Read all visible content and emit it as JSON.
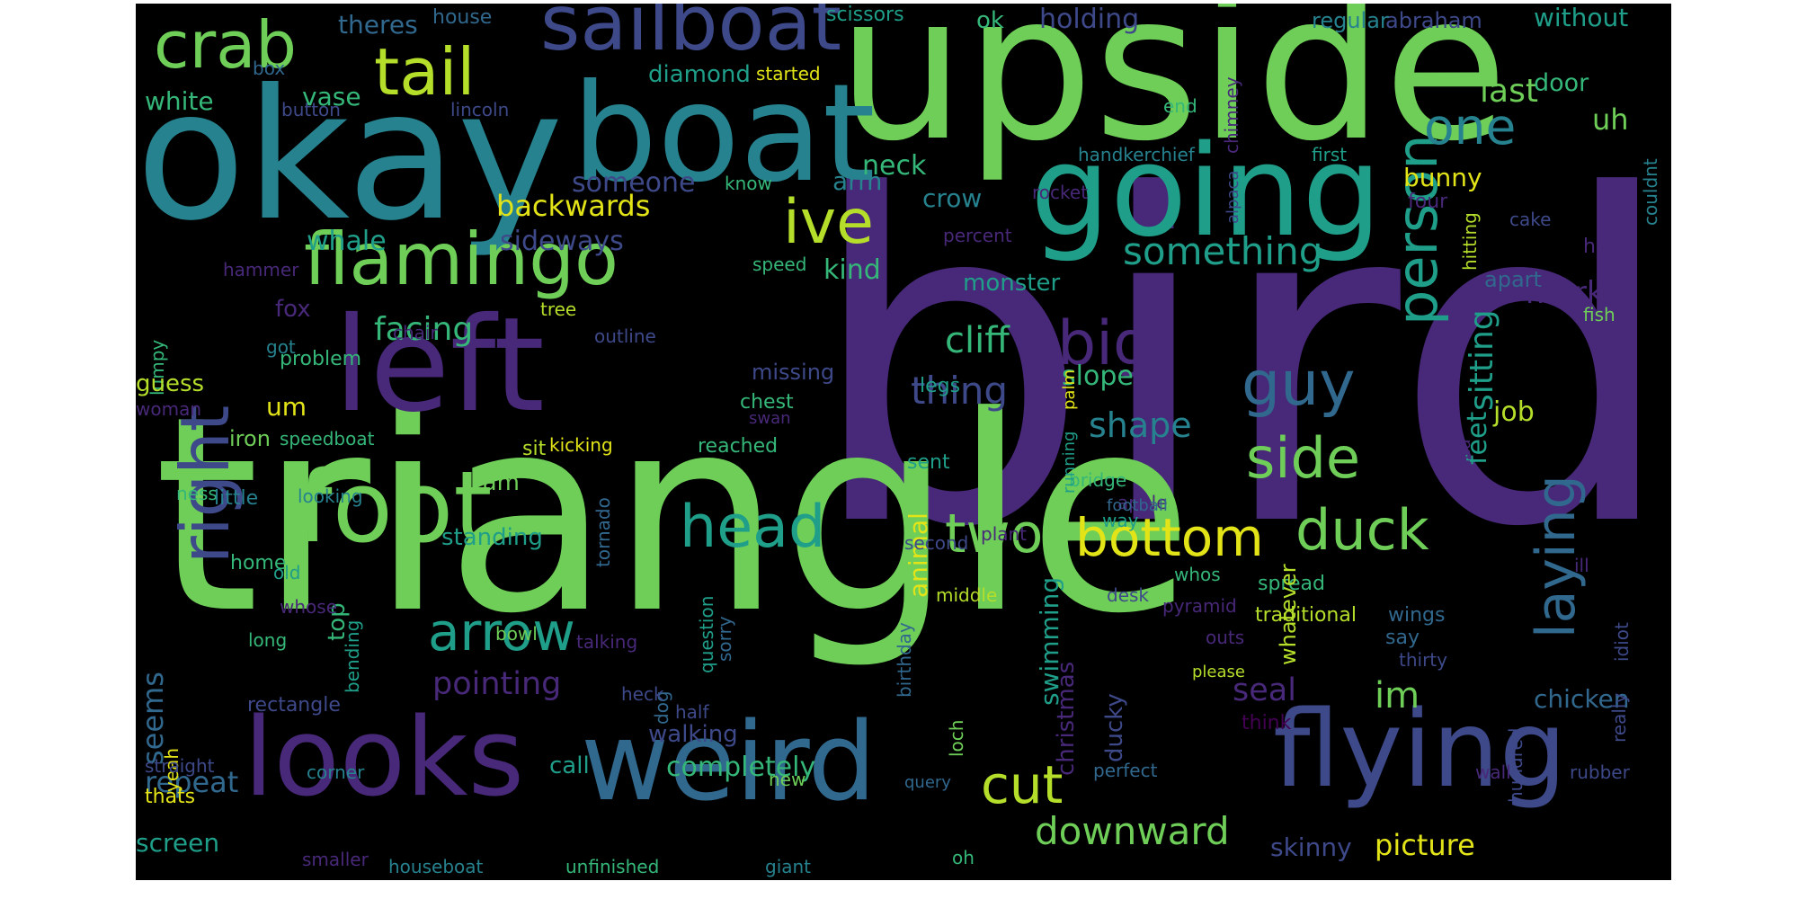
{
  "palette": {
    "purple": "#482878",
    "indigo": "#3e4989",
    "blue": "#31688e",
    "teal": "#26828e",
    "aqua": "#1f9e89",
    "green": "#35b779",
    "lime": "#6ece58",
    "yellowgreen": "#b5de2b",
    "yellow": "#e3e418",
    "darkpurple": "#440154"
  },
  "words": [
    {
      "text": "bird",
      "color": "purple"
    },
    {
      "text": "triangle",
      "color": "lime"
    },
    {
      "text": "upside",
      "color": "lime"
    },
    {
      "text": "okay",
      "color": "teal"
    },
    {
      "text": "boat",
      "color": "teal"
    },
    {
      "text": "going",
      "color": "aqua"
    },
    {
      "text": "left",
      "color": "purple"
    },
    {
      "text": "looks",
      "color": "purple"
    },
    {
      "text": "weird",
      "color": "blue"
    },
    {
      "text": "flying",
      "color": "indigo"
    },
    {
      "text": "foot",
      "color": "lime"
    },
    {
      "text": "sailboat",
      "color": "indigo"
    },
    {
      "text": "flamingo",
      "color": "lime"
    },
    {
      "text": "right",
      "color": "indigo"
    },
    {
      "text": "crab",
      "color": "lime"
    },
    {
      "text": "tail",
      "color": "yellowgreen"
    },
    {
      "text": "person",
      "color": "aqua"
    },
    {
      "text": "ive",
      "color": "yellowgreen"
    },
    {
      "text": "big",
      "color": "purple"
    },
    {
      "text": "guy",
      "color": "blue"
    },
    {
      "text": "side",
      "color": "lime"
    },
    {
      "text": "head",
      "color": "aqua"
    },
    {
      "text": "two",
      "color": "lime"
    },
    {
      "text": "bottom",
      "color": "yellow"
    },
    {
      "text": "duck",
      "color": "lime"
    },
    {
      "text": "arrow",
      "color": "aqua"
    },
    {
      "text": "laying",
      "color": "blue"
    },
    {
      "text": "cut",
      "color": "yellowgreen"
    },
    {
      "text": "downward",
      "color": "lime"
    },
    {
      "text": "one",
      "color": "teal"
    },
    {
      "text": "something",
      "color": "aqua"
    },
    {
      "text": "thing",
      "color": "indigo"
    },
    {
      "text": "cliff",
      "color": "green"
    },
    {
      "text": "shape",
      "color": "teal"
    },
    {
      "text": "facing",
      "color": "green"
    },
    {
      "text": "backwards",
      "color": "yellow"
    },
    {
      "text": "pointing",
      "color": "purple"
    },
    {
      "text": "seal",
      "color": "purple"
    },
    {
      "text": "im",
      "color": "lime"
    },
    {
      "text": "repeat",
      "color": "blue"
    },
    {
      "text": "picture",
      "color": "yellow"
    },
    {
      "text": "skinny",
      "color": "indigo"
    },
    {
      "text": "feet",
      "color": "aqua"
    },
    {
      "text": "swimming",
      "color": "aqua"
    },
    {
      "text": "christmas",
      "color": "purple"
    },
    {
      "text": "animal",
      "color": "yellow"
    },
    {
      "text": "chicken",
      "color": "blue"
    },
    {
      "text": "last",
      "color": "lime"
    },
    {
      "text": "uh",
      "color": "lime"
    },
    {
      "text": "door",
      "color": "green"
    },
    {
      "text": "without",
      "color": "aqua"
    },
    {
      "text": "abraham",
      "color": "indigo"
    },
    {
      "text": "regular",
      "color": "teal"
    },
    {
      "text": "holding",
      "color": "indigo"
    },
    {
      "text": "ok",
      "color": "green"
    },
    {
      "text": "scissors",
      "color": "aqua"
    },
    {
      "text": "house",
      "color": "blue"
    },
    {
      "text": "theres",
      "color": "blue"
    },
    {
      "text": "white",
      "color": "green"
    },
    {
      "text": "vase",
      "color": "green"
    },
    {
      "text": "diamond",
      "color": "aqua"
    },
    {
      "text": "started",
      "color": "yellow"
    },
    {
      "text": "box",
      "color": "blue"
    },
    {
      "text": "button",
      "color": "indigo"
    },
    {
      "text": "lincoln",
      "color": "indigo"
    },
    {
      "text": "end",
      "color": "green"
    },
    {
      "text": "chimney",
      "color": "purple"
    },
    {
      "text": "first",
      "color": "aqua"
    },
    {
      "text": "handkerchief",
      "color": "teal"
    },
    {
      "text": "alpaca",
      "color": "indigo"
    },
    {
      "text": "couldnt",
      "color": "teal"
    },
    {
      "text": "neck",
      "color": "green"
    },
    {
      "text": "arm",
      "color": "teal"
    },
    {
      "text": "someone",
      "color": "indigo"
    },
    {
      "text": "know",
      "color": "green"
    },
    {
      "text": "rocket",
      "color": "purple"
    },
    {
      "text": "bunny",
      "color": "yellow"
    },
    {
      "text": "four",
      "color": "purple"
    },
    {
      "text": "cake",
      "color": "indigo"
    },
    {
      "text": "hitting",
      "color": "yellowgreen"
    },
    {
      "text": "crow",
      "color": "teal"
    },
    {
      "text": "percent",
      "color": "purple"
    },
    {
      "text": "hear",
      "color": "purple"
    },
    {
      "text": "whale",
      "color": "aqua"
    },
    {
      "text": "sideways",
      "color": "indigo"
    },
    {
      "text": "kind",
      "color": "green"
    },
    {
      "text": "speed",
      "color": "green"
    },
    {
      "text": "hammer",
      "color": "purple"
    },
    {
      "text": "monster",
      "color": "aqua"
    },
    {
      "text": "apart",
      "color": "blue"
    },
    {
      "text": "dont",
      "color": "purple"
    },
    {
      "text": "fox",
      "color": "purple"
    },
    {
      "text": "chair",
      "color": "purple"
    },
    {
      "text": "got",
      "color": "teal"
    },
    {
      "text": "tree",
      "color": "yellowgreen"
    },
    {
      "text": "mark",
      "color": "purple"
    },
    {
      "text": "fish",
      "color": "lime"
    },
    {
      "text": "lumpy",
      "color": "green"
    },
    {
      "text": "outline",
      "color": "indigo"
    },
    {
      "text": "problem",
      "color": "green"
    },
    {
      "text": "guess",
      "color": "yellowgreen"
    },
    {
      "text": "woman",
      "color": "purple"
    },
    {
      "text": "um",
      "color": "yellow"
    },
    {
      "text": "missing",
      "color": "indigo"
    },
    {
      "text": "legs",
      "color": "aqua"
    },
    {
      "text": "slope",
      "color": "green"
    },
    {
      "text": "chest",
      "color": "green"
    },
    {
      "text": "swan",
      "color": "purple"
    },
    {
      "text": "palm",
      "color": "yellow"
    },
    {
      "text": "job",
      "color": "yellowgreen"
    },
    {
      "text": "go",
      "color": "purple"
    },
    {
      "text": "sitting",
      "color": "aqua"
    },
    {
      "text": "idea",
      "color": "purple"
    },
    {
      "text": "speedboat",
      "color": "green"
    },
    {
      "text": "kicking",
      "color": "yellow"
    },
    {
      "text": "reached",
      "color": "green"
    },
    {
      "text": "sent",
      "color": "aqua"
    },
    {
      "text": "bridge",
      "color": "green"
    },
    {
      "text": "apple",
      "color": "purple"
    },
    {
      "text": "iron",
      "color": "lime"
    },
    {
      "text": "sit",
      "color": "yellowgreen"
    },
    {
      "text": "ram",
      "color": "lime"
    },
    {
      "text": "ness",
      "color": "green"
    },
    {
      "text": "little",
      "color": "teal"
    },
    {
      "text": "looking",
      "color": "teal"
    },
    {
      "text": "running",
      "color": "aqua"
    },
    {
      "text": "football",
      "color": "blue"
    },
    {
      "text": "way",
      "color": "aqua"
    },
    {
      "text": "plant",
      "color": "purple"
    },
    {
      "text": "standing",
      "color": "aqua"
    },
    {
      "text": "tornado",
      "color": "blue"
    },
    {
      "text": "second",
      "color": "indigo"
    },
    {
      "text": "whos",
      "color": "green"
    },
    {
      "text": "ill",
      "color": "purple"
    },
    {
      "text": "home",
      "color": "green"
    },
    {
      "text": "old",
      "color": "aqua"
    },
    {
      "text": "middle",
      "color": "yellowgreen"
    },
    {
      "text": "desk",
      "color": "indigo"
    },
    {
      "text": "pyramid",
      "color": "purple"
    },
    {
      "text": "outs",
      "color": "purple"
    },
    {
      "text": "say",
      "color": "blue"
    },
    {
      "text": "spread",
      "color": "green"
    },
    {
      "text": "traditional",
      "color": "yellowgreen"
    },
    {
      "text": "bending",
      "color": "aqua"
    },
    {
      "text": "top",
      "color": "green"
    },
    {
      "text": "please",
      "color": "yellowgreen"
    },
    {
      "text": "wings",
      "color": "blue"
    },
    {
      "text": "whose",
      "color": "purple"
    },
    {
      "text": "bowl",
      "color": "lime"
    },
    {
      "text": "question",
      "color": "aqua"
    },
    {
      "text": "talking",
      "color": "purple"
    },
    {
      "text": "sorry",
      "color": "blue"
    },
    {
      "text": "whatever",
      "color": "yellowgreen"
    },
    {
      "text": "ducky",
      "color": "indigo"
    },
    {
      "text": "thirty",
      "color": "indigo"
    },
    {
      "text": "idiot",
      "color": "indigo"
    },
    {
      "text": "long",
      "color": "green"
    },
    {
      "text": "seems",
      "color": "blue"
    },
    {
      "text": "yeah",
      "color": "yellow"
    },
    {
      "text": "rectangle",
      "color": "indigo"
    },
    {
      "text": "dog",
      "color": "blue"
    },
    {
      "text": "heck",
      "color": "indigo"
    },
    {
      "text": "half",
      "color": "indigo"
    },
    {
      "text": "loch",
      "color": "lime"
    },
    {
      "text": "walking",
      "color": "indigo"
    },
    {
      "text": "birthday",
      "color": "blue"
    },
    {
      "text": "think",
      "color": "darkpurple"
    },
    {
      "text": "really",
      "color": "indigo"
    },
    {
      "text": "straight",
      "color": "indigo"
    },
    {
      "text": "corner",
      "color": "teal"
    },
    {
      "text": "call",
      "color": "aqua"
    },
    {
      "text": "completely",
      "color": "green"
    },
    {
      "text": "new",
      "color": "lime"
    },
    {
      "text": "query",
      "color": "blue"
    },
    {
      "text": "perfect",
      "color": "blue"
    },
    {
      "text": "hundred",
      "color": "indigo"
    },
    {
      "text": "wall",
      "color": "purple"
    },
    {
      "text": "rubber",
      "color": "indigo"
    },
    {
      "text": "thats",
      "color": "yellow"
    },
    {
      "text": "screen",
      "color": "aqua"
    },
    {
      "text": "smaller",
      "color": "purple"
    },
    {
      "text": "houseboat",
      "color": "teal"
    },
    {
      "text": "unfinished",
      "color": "green"
    },
    {
      "text": "giant",
      "color": "teal"
    },
    {
      "text": "oh",
      "color": "green"
    }
  ]
}
